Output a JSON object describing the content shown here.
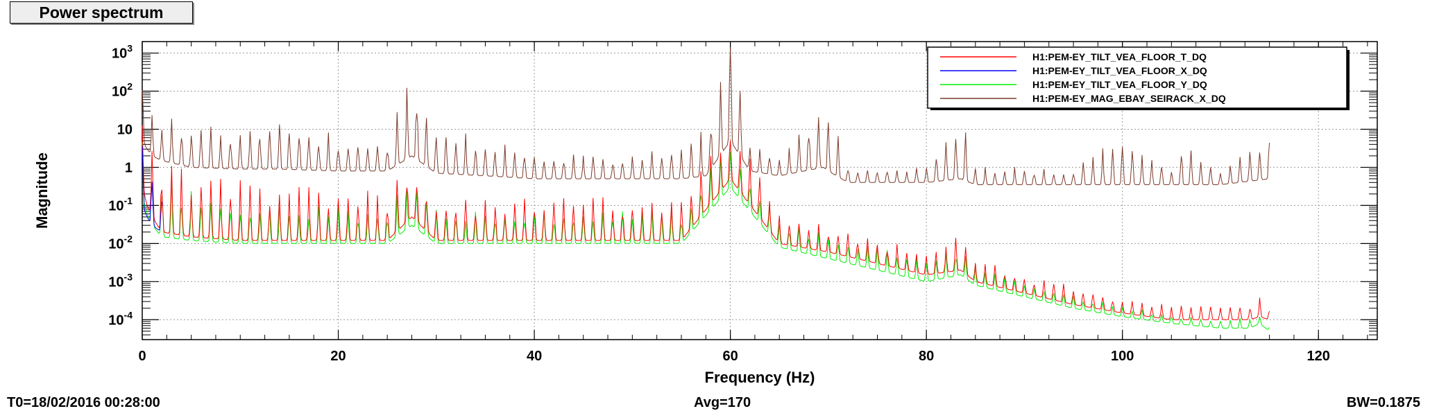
{
  "panel": {
    "title": "Power spectrum",
    "footer_left": "T0=18/02/2016 00:28:00",
    "footer_mid": "Avg=170",
    "footer_right": "BW=0.1875"
  },
  "chart_data": {
    "type": "line",
    "title": "Power spectrum",
    "xlabel": "Frequency (Hz)",
    "ylabel": "Magnitude",
    "xlim": [
      0,
      126
    ],
    "ylim": [
      3e-05,
      2000
    ],
    "yscale": "log",
    "grid": true,
    "legend_position": "top-right",
    "x_ticks": [
      0,
      20,
      40,
      60,
      80,
      100,
      120
    ],
    "y_ticks": [
      {
        "value": 0.0001,
        "base": "10",
        "exp": "-4"
      },
      {
        "value": 0.001,
        "base": "10",
        "exp": "-3"
      },
      {
        "value": 0.01,
        "base": "10",
        "exp": "-2"
      },
      {
        "value": 0.1,
        "base": "10",
        "exp": "-1"
      },
      {
        "value": 1,
        "base": "1",
        "exp": ""
      },
      {
        "value": 10,
        "base": "10",
        "exp": ""
      },
      {
        "value": 100,
        "base": "10",
        "exp": "2"
      },
      {
        "value": 1000,
        "base": "10",
        "exp": "3"
      }
    ],
    "series": [
      {
        "name": "H1:PEM-EY_TILT_VEA_FLOOR_T_DQ",
        "color": "#ff0000",
        "x": [
          0,
          0.5,
          1,
          2,
          5,
          10,
          15,
          20,
          25,
          27.5,
          30,
          35,
          40,
          45,
          50,
          55,
          60,
          65,
          70,
          75,
          80,
          83.5,
          85,
          90,
          95,
          100,
          105,
          110,
          113,
          114,
          115
        ],
        "y": [
          8,
          4,
          1.5,
          0.6,
          0.3,
          0.2,
          0.15,
          0.15,
          0.12,
          0.8,
          0.1,
          0.1,
          0.1,
          0.09,
          0.09,
          0.09,
          8,
          0.05,
          0.02,
          0.01,
          0.004,
          0.012,
          0.003,
          0.0012,
          0.0006,
          0.0003,
          0.0002,
          0.0002,
          0.0002,
          0.0003,
          0.0002
        ],
        "floor_y": [
          0.3,
          0.1,
          0.05,
          0.02,
          0.015,
          0.012,
          0.012,
          0.012,
          0.012,
          0.05,
          0.012,
          0.012,
          0.012,
          0.012,
          0.012,
          0.012,
          0.5,
          0.01,
          0.006,
          0.003,
          0.0015,
          0.002,
          0.001,
          0.0005,
          0.00025,
          0.00015,
          0.0001,
          0.0001,
          0.0001,
          0.00012,
          0.0001
        ]
      },
      {
        "name": "H1:PEM-EY_TILT_VEA_FLOOR_X_DQ",
        "color": "#0000ff",
        "x": [
          0,
          0.5,
          1,
          2
        ],
        "y": [
          3,
          1,
          0.5,
          0.2
        ],
        "floor_y": [
          0.1,
          0.05,
          0.03,
          0.02
        ]
      },
      {
        "name": "H1:PEM-EY_TILT_VEA_FLOOR_Y_DQ",
        "color": "#00ee00",
        "x": [
          0,
          0.5,
          1,
          2,
          5,
          10,
          15,
          20,
          25,
          27.5,
          30,
          35,
          40,
          45,
          50,
          55,
          60,
          65,
          70,
          75,
          80,
          83.5,
          85,
          90,
          95,
          100,
          105,
          110,
          113,
          114,
          115
        ],
        "y": [
          5,
          2,
          0.8,
          0.3,
          0.12,
          0.08,
          0.06,
          0.06,
          0.05,
          0.4,
          0.05,
          0.05,
          0.05,
          0.05,
          0.05,
          0.05,
          3,
          0.03,
          0.012,
          0.006,
          0.003,
          0.006,
          0.002,
          0.0008,
          0.0004,
          0.0002,
          0.00012,
          0.0001,
          0.0001,
          0.00012,
          6e-05
        ],
        "floor_y": [
          0.15,
          0.06,
          0.03,
          0.015,
          0.012,
          0.01,
          0.01,
          0.01,
          0.01,
          0.03,
          0.01,
          0.01,
          0.01,
          0.01,
          0.01,
          0.01,
          0.3,
          0.008,
          0.004,
          0.002,
          0.001,
          0.0015,
          0.0008,
          0.0004,
          0.0002,
          0.00012,
          8e-05,
          6e-05,
          6e-05,
          8e-05,
          5e-05
        ]
      },
      {
        "name": "H1:PEM-EY_MAG_EBAY_SEIRACK_X_DQ",
        "color": "#7b3a2a",
        "x": [
          0,
          0.5,
          1,
          2,
          5,
          10,
          14,
          20,
          25,
          27.5,
          30,
          35,
          40,
          45,
          50,
          55,
          57.5,
          60,
          62,
          65,
          69.5,
          70,
          72,
          75,
          80,
          83.5,
          85,
          90,
          95,
          100,
          105,
          106,
          110,
          115
        ],
        "y": [
          150,
          60,
          20,
          12,
          8,
          5,
          15,
          4,
          3,
          150,
          8,
          3,
          2,
          1.5,
          1.5,
          2.5,
          6,
          1500,
          3,
          1.5,
          30,
          20,
          1,
          0.8,
          0.8,
          15,
          0.8,
          0.8,
          0.7,
          4,
          0.7,
          3,
          0.6,
          5
        ],
        "floor_y": [
          5,
          3,
          2,
          1.5,
          1,
          0.9,
          0.9,
          0.8,
          0.8,
          2,
          0.7,
          0.6,
          0.5,
          0.5,
          0.5,
          0.5,
          0.6,
          5,
          0.8,
          0.6,
          1,
          0.8,
          0.4,
          0.4,
          0.4,
          0.5,
          0.35,
          0.35,
          0.35,
          0.35,
          0.35,
          0.35,
          0.35,
          0.5
        ]
      }
    ]
  }
}
